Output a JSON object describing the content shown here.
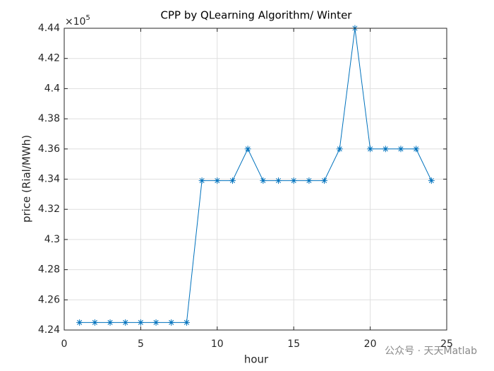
{
  "chart_data": {
    "type": "line",
    "title": "CPP by QLearning Algorithm/ Winter",
    "x_label": "hour",
    "y_label": "price (Rial/MWh)",
    "y_multiplier": {
      "base": "×10",
      "exponent": "5"
    },
    "watermark": "公众号 · 天天Matlab",
    "x": [
      1,
      2,
      3,
      4,
      5,
      6,
      7,
      8,
      9,
      10,
      11,
      12,
      13,
      14,
      15,
      16,
      17,
      18,
      19,
      20,
      21,
      22,
      23,
      24
    ],
    "series": [
      {
        "color": "#0072bd",
        "values": [
          4.245,
          4.245,
          4.245,
          4.245,
          4.245,
          4.245,
          4.245,
          4.245,
          4.339,
          4.339,
          4.339,
          4.36,
          4.339,
          4.339,
          4.339,
          4.339,
          4.339,
          4.36,
          4.44,
          4.36,
          4.36,
          4.36,
          4.36,
          4.339
        ]
      }
    ],
    "xlim": [
      0,
      25
    ],
    "xticks": [
      0,
      5,
      10,
      15,
      20,
      25
    ],
    "ylim": [
      4.24,
      4.44
    ],
    "yticks": [
      4.24,
      4.26,
      4.28,
      4.3,
      4.32,
      4.34,
      4.36,
      4.38,
      4.4,
      4.42,
      4.44
    ],
    "grid": true,
    "marker": "asterisk"
  }
}
